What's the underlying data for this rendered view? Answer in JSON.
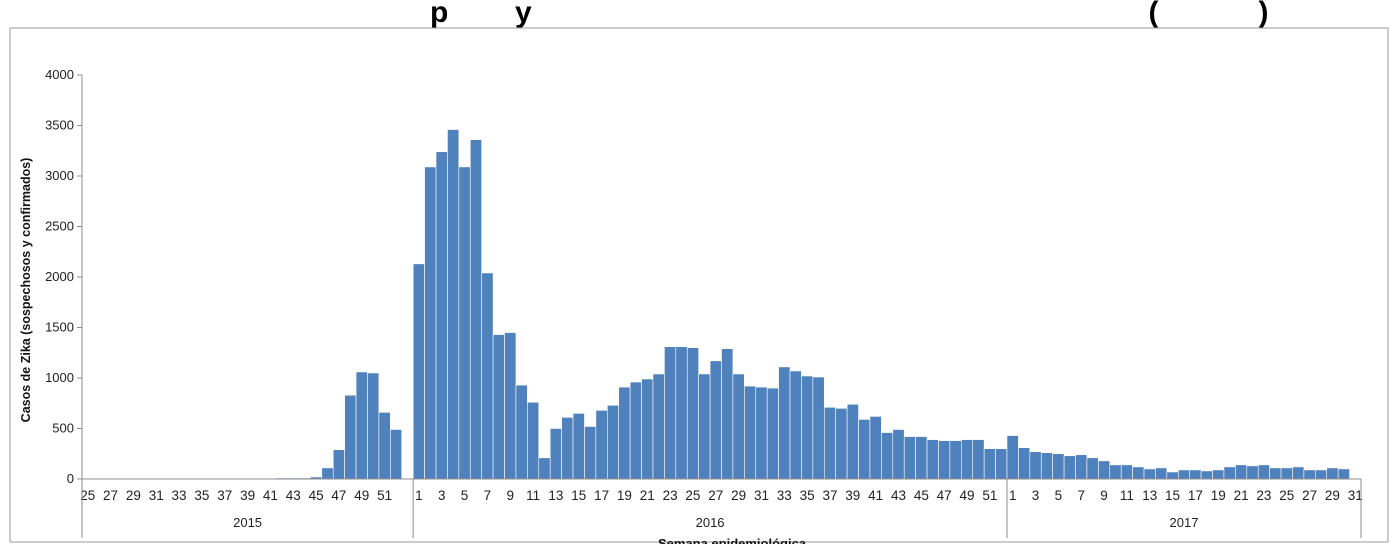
{
  "chart_data": {
    "type": "bar",
    "title": "p        y                                                                          (            )",
    "ylabel": "Casos de Zika (sospechosos y confirmados)",
    "xlabel": "Semana epidemiológica",
    "ylim": [
      0,
      4000
    ],
    "yticks": [
      0,
      500,
      1000,
      1500,
      2000,
      2500,
      3000,
      3500,
      4000
    ],
    "grid": false,
    "bar_color": "#4f81bd",
    "groups": [
      {
        "label": "2015",
        "weeks": [
          25,
          26,
          27,
          28,
          29,
          30,
          31,
          32,
          33,
          34,
          35,
          36,
          37,
          38,
          39,
          40,
          41,
          42,
          43,
          44,
          45,
          46,
          47,
          48,
          49,
          50,
          51,
          52,
          53
        ],
        "values": [
          0,
          0,
          0,
          0,
          0,
          0,
          0,
          0,
          0,
          0,
          0,
          0,
          0,
          0,
          0,
          0,
          0,
          10,
          10,
          10,
          20,
          110,
          290,
          830,
          1060,
          1050,
          660,
          490,
          0
        ]
      },
      {
        "label": "2016",
        "weeks": [
          1,
          2,
          3,
          4,
          5,
          6,
          7,
          8,
          9,
          10,
          11,
          12,
          13,
          14,
          15,
          16,
          17,
          18,
          19,
          20,
          21,
          22,
          23,
          24,
          25,
          26,
          27,
          28,
          29,
          30,
          31,
          32,
          33,
          34,
          35,
          36,
          37,
          38,
          39,
          40,
          41,
          42,
          43,
          44,
          45,
          46,
          47,
          48,
          49,
          50,
          51,
          52
        ],
        "values": [
          2130,
          3090,
          3240,
          3460,
          3090,
          3360,
          2040,
          1430,
          1450,
          930,
          760,
          210,
          500,
          610,
          650,
          520,
          680,
          730,
          910,
          960,
          990,
          1040,
          1310,
          1310,
          1300,
          1040,
          1170,
          1290,
          1040,
          920,
          910,
          900,
          1110,
          1070,
          1020,
          1010,
          710,
          700,
          740,
          590,
          620,
          460,
          490,
          420,
          420,
          390,
          380,
          380,
          390,
          390,
          300,
          300
        ]
      },
      {
        "label": "2017",
        "weeks": [
          1,
          2,
          3,
          4,
          5,
          6,
          7,
          8,
          9,
          10,
          11,
          12,
          13,
          14,
          15,
          16,
          17,
          18,
          19,
          20,
          21,
          22,
          23,
          24,
          25,
          26,
          27,
          28,
          29,
          30,
          31
        ],
        "values": [
          430,
          310,
          270,
          260,
          250,
          230,
          240,
          210,
          180,
          140,
          140,
          120,
          100,
          110,
          70,
          90,
          90,
          80,
          90,
          120,
          140,
          130,
          140,
          110,
          110,
          120,
          90,
          90,
          110,
          100,
          0
        ]
      }
    ],
    "xtick_labels": {
      "2015": [
        "25",
        "27",
        "29",
        "31",
        "33",
        "35",
        "37",
        "39",
        "41",
        "43",
        "45",
        "47",
        "49",
        "51"
      ],
      "2016": [
        "1",
        "3",
        "5",
        "7",
        "9",
        "11",
        "13",
        "15",
        "17",
        "19",
        "21",
        "23",
        "25",
        "27",
        "29",
        "31",
        "33",
        "35",
        "37",
        "39",
        "41",
        "43",
        "45",
        "47",
        "49",
        "51"
      ],
      "2017": [
        "1",
        "3",
        "5",
        "7",
        "9",
        "11",
        "13",
        "15",
        "17",
        "19",
        "21",
        "23",
        "25",
        "27",
        "29",
        "31"
      ]
    }
  }
}
